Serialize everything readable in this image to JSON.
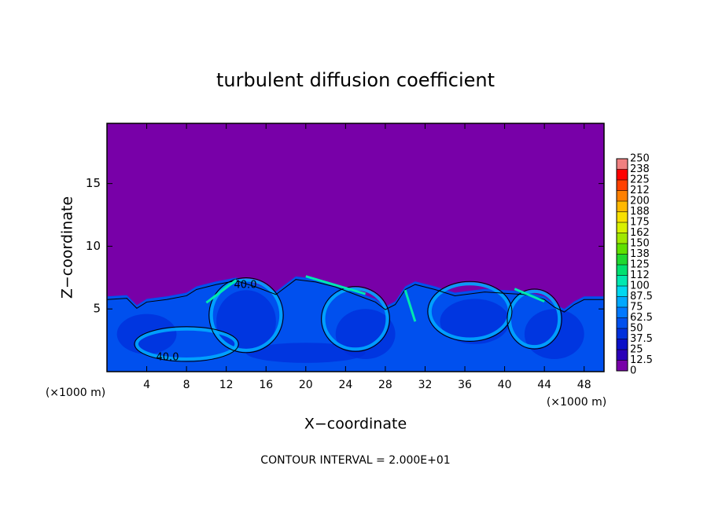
{
  "chart_data": {
    "type": "contour",
    "title": "turbulent diffusion coefficient",
    "x_label": "X−coordinate",
    "y_label": "Z−coordinate",
    "x_unit_labels": [
      "(×1000 m)",
      "(×1000 m)"
    ],
    "footnote": "CONTOUR INTERVAL = 2.000E+01",
    "contour_labels": [
      "40.0",
      "40.0"
    ],
    "xlim": [
      0,
      50
    ],
    "xticks": [
      4,
      8,
      12,
      16,
      20,
      24,
      28,
      32,
      36,
      40,
      44,
      48
    ],
    "ylim": [
      0,
      19.8
    ],
    "yticks": [
      5,
      10,
      15
    ],
    "colorbar": {
      "ticks": [
        0,
        12.5,
        25,
        37.5,
        50,
        62.5,
        75,
        87.5,
        100,
        {
          "value": 112.5,
          "label": "112"
        },
        125,
        {
          "value": 137.5,
          "label": "138"
        },
        150,
        {
          "value": 162.5,
          "label": "162"
        },
        175,
        {
          "value": 187.5,
          "label": "188"
        },
        200,
        {
          "value": 212.5,
          "label": "212"
        },
        225,
        {
          "value": 237.5,
          "label": "238"
        },
        250
      ],
      "colors": [
        "#7800a8",
        "#2a00b8",
        "#0a10c8",
        "#0030dc",
        "#0050ee",
        "#0078ff",
        "#00a8ff",
        "#00d8f0",
        "#00e8b0",
        "#00e070",
        "#20d830",
        "#60e000",
        "#a0e800",
        "#d8f000",
        "#f8e000",
        "#ffb800",
        "#ff8000",
        "#ff4000",
        "#ff0000",
        "#f08080"
      ]
    }
  }
}
